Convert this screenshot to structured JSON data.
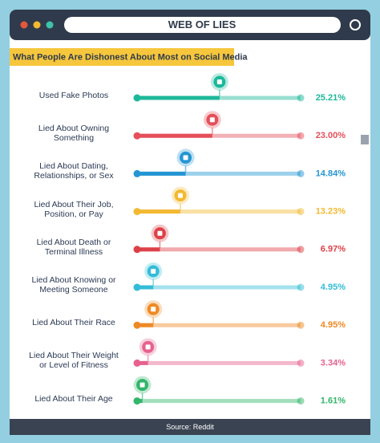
{
  "chart_data": {
    "type": "bar",
    "orientation": "horizontal",
    "title": "WEB OF LIES",
    "subtitle": "What People Are Dishonest About Most on Social Media",
    "source": "Source: Reddit",
    "categories": [
      "Used Fake Photos",
      "Lied About Owning Something",
      "Lied About Dating, Relationships, or Sex",
      "Lied About Their Job, Position, or Pay",
      "Lied About Death or Terminal Illness",
      "Lied About Knowing or Meeting Someone",
      "Lied About Their Race",
      "Lied About Their Weight or Level of Fitness",
      "Lied About Their Age"
    ],
    "values": [
      25.21,
      23.0,
      14.84,
      13.23,
      6.97,
      4.95,
      4.95,
      3.34,
      1.61
    ],
    "value_labels": [
      "25.21%",
      "23.00%",
      "14.84%",
      "13.23%",
      "6.97%",
      "4.95%",
      "4.95%",
      "3.34%",
      "1.61%"
    ],
    "colors": [
      "#1db89a",
      "#e5505a",
      "#2596d3",
      "#f2b931",
      "#dd4148",
      "#34bcd6",
      "#ee8a25",
      "#e6628f",
      "#33b56a"
    ],
    "xlim": [
      0,
      50
    ]
  }
}
